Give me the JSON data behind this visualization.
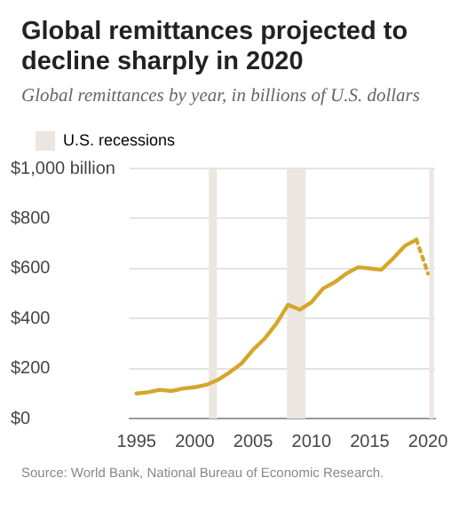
{
  "chart_data": {
    "type": "line",
    "title": "Global remittances projected to decline sharply in 2020",
    "subtitle": "Global remittances by year, in billions of U.S. dollars",
    "x": [
      1995,
      1996,
      1997,
      1998,
      1999,
      2000,
      2001,
      2002,
      2003,
      2004,
      2005,
      2006,
      2007,
      2008,
      2009,
      2010,
      2011,
      2012,
      2013,
      2014,
      2015,
      2016,
      2017,
      2018,
      2019,
      2020
    ],
    "series": [
      {
        "color": "#d4a72c",
        "line_style": "solid",
        "values": [
          100,
          105,
          115,
          110,
          120,
          125,
          135,
          155,
          185,
          220,
          275,
          320,
          380,
          455,
          435,
          465,
          520,
          545,
          580,
          605,
          600,
          595,
          640,
          690,
          715,
          null
        ]
      },
      {
        "color": "#d4a72c",
        "line_style": "dotted",
        "values": [
          null,
          null,
          null,
          null,
          null,
          null,
          null,
          null,
          null,
          null,
          null,
          null,
          null,
          null,
          null,
          null,
          null,
          null,
          null,
          null,
          null,
          null,
          null,
          null,
          715,
          580
        ]
      }
    ],
    "xlim": [
      1994.4,
      2020.6
    ],
    "xticks": [
      1995,
      2000,
      2005,
      2010,
      2015,
      2020
    ],
    "ylim": [
      0,
      1000
    ],
    "yticks": [
      {
        "value": 0,
        "label": "$0"
      },
      {
        "value": 200,
        "label": "$200"
      },
      {
        "value": 400,
        "label": "$400"
      },
      {
        "value": 600,
        "label": "$600"
      },
      {
        "value": 800,
        "label": "$800"
      },
      {
        "value": 1000,
        "label": "$1,000 billion"
      }
    ],
    "bands": [
      {
        "axis": "x",
        "from": 2001.2,
        "to": 2001.9,
        "label": "U.S. recessions",
        "color": "#ebe7e0"
      },
      {
        "axis": "x",
        "from": 2007.9,
        "to": 2009.5,
        "color": "#ebe7e0"
      },
      {
        "axis": "x",
        "from": 2020.1,
        "to": 2020.5,
        "color": "#ebe7e0"
      }
    ],
    "grid": "y",
    "legend": "top left",
    "marker": "none",
    "annotations": [
      "Source: World Bank, National Bureau of Economic Research."
    ]
  }
}
